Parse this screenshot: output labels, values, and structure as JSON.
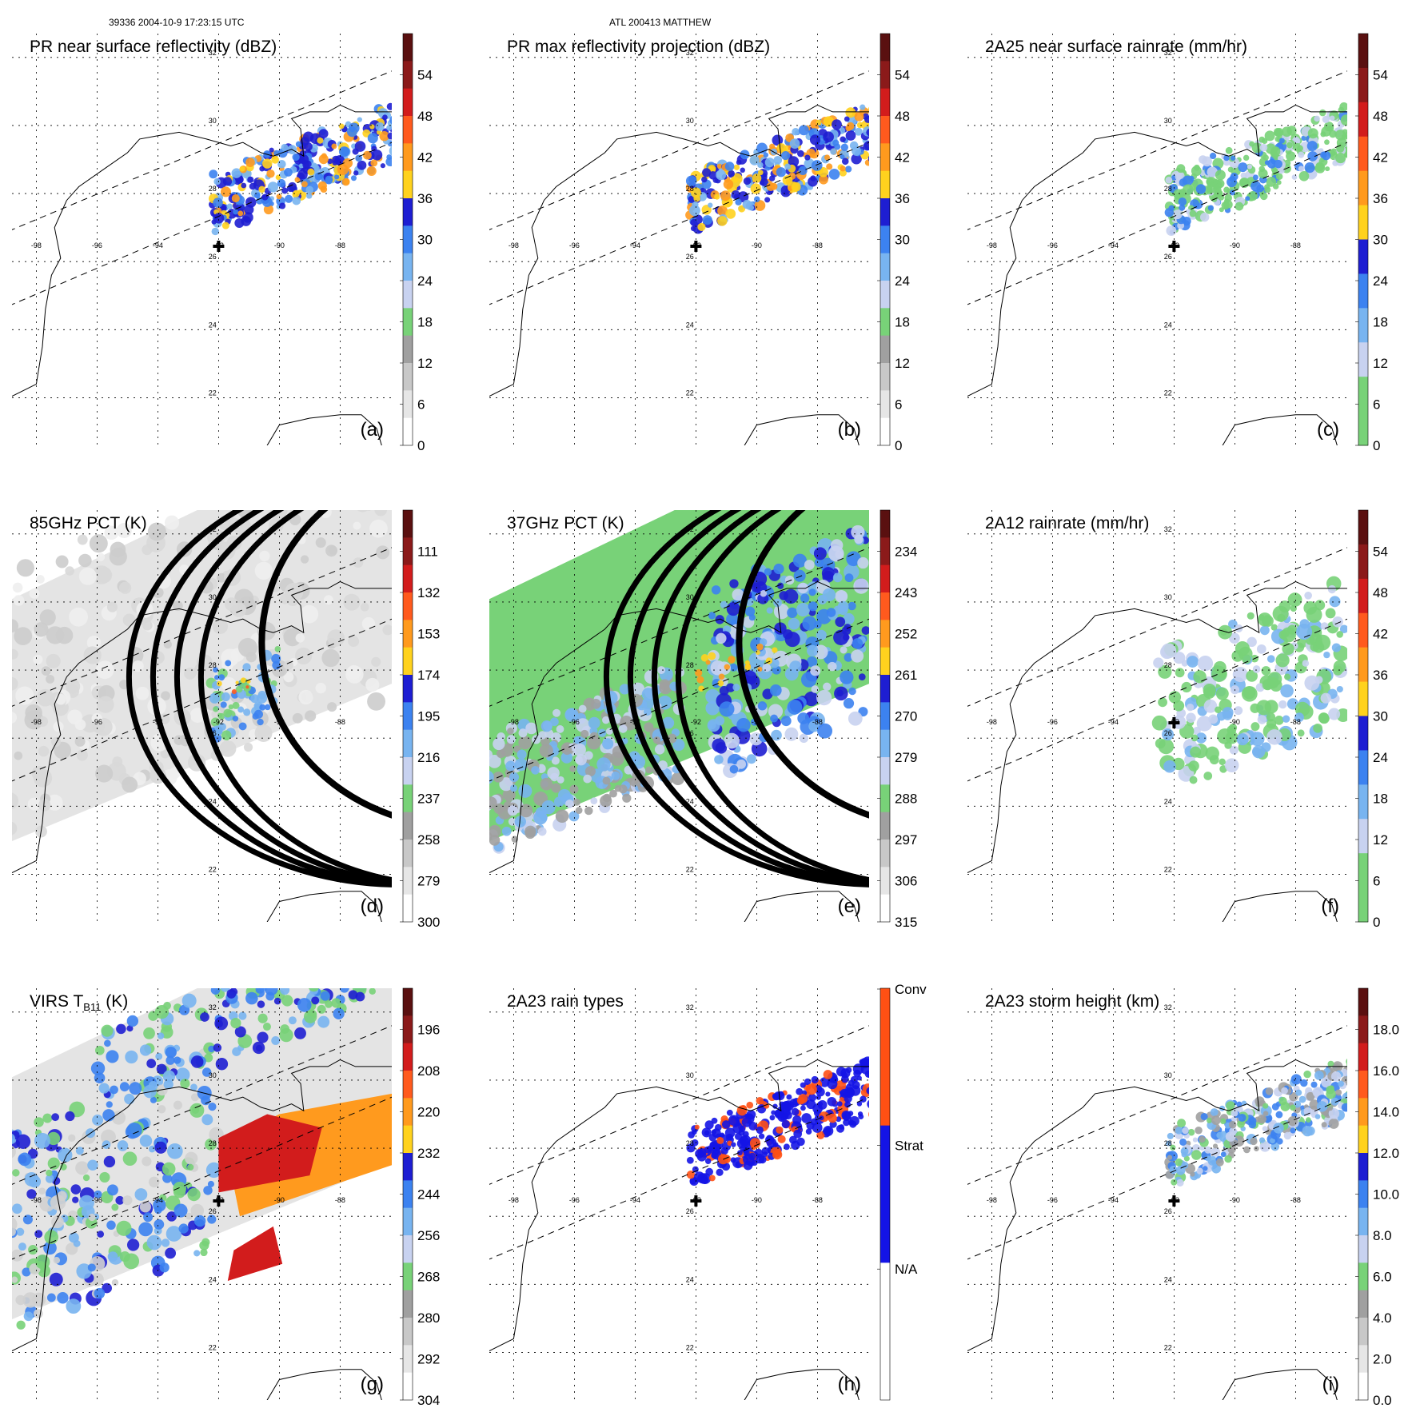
{
  "header": {
    "left": "39336 2004-10-9 17:23:15 UTC",
    "center": "ATL 200413 MATTHEW"
  },
  "map": {
    "lon_ticks": [
      -98,
      -96,
      -94,
      -92,
      -90,
      -88
    ],
    "lat_ticks": [
      22,
      24,
      26,
      28,
      30,
      32
    ],
    "lon_tick_labels": [
      "-98",
      "-96",
      "-94",
      "-92",
      "-90",
      "-88"
    ],
    "lat_tick_labels": [
      "22",
      "24",
      "26",
      "28",
      "30",
      "32"
    ]
  },
  "panels": [
    {
      "id": "a",
      "title": "PR near surface reflectivity (dBZ)",
      "letter": "(a)",
      "cb_labels": [
        "54",
        "48",
        "42",
        "36",
        "30",
        "24",
        "18",
        "12",
        "6",
        "0"
      ],
      "cb_colors": [
        "#5a1010",
        "#8b1a1a",
        "#d21c1c",
        "#ff5a1e",
        "#ff9a1e",
        "#ffd21e",
        "#1e1ed2",
        "#3c82f0",
        "#78b4f0",
        "#c8d2f0",
        "#78d278",
        "#a0a0a0",
        "#c8c8c8",
        "#e6e6e6",
        "#ffffff"
      ],
      "shading": "pr",
      "cross": true
    },
    {
      "id": "b",
      "title": "PR max reflectivity projection (dBZ)",
      "letter": "(b)",
      "cb_labels": [
        "54",
        "48",
        "42",
        "36",
        "30",
        "24",
        "18",
        "12",
        "6",
        "0"
      ],
      "cb_colors": [
        "#5a1010",
        "#8b1a1a",
        "#d21c1c",
        "#ff5a1e",
        "#ff9a1e",
        "#ffd21e",
        "#1e1ed2",
        "#3c82f0",
        "#78b4f0",
        "#c8d2f0",
        "#78d278",
        "#a0a0a0",
        "#c8c8c8",
        "#e6e6e6",
        "#ffffff"
      ],
      "shading": "pr",
      "cross": true
    },
    {
      "id": "c",
      "title": "2A25 near surface rainrate (mm/hr)",
      "letter": "(c)",
      "cb_labels": [
        "54",
        "48",
        "42",
        "36",
        "30",
        "24",
        "18",
        "12",
        "6",
        "0"
      ],
      "cb_colors": [
        "#5a1010",
        "#8b1a1a",
        "#d21c1c",
        "#ff5a1e",
        "#ff9a1e",
        "#ffd21e",
        "#1e1ed2",
        "#3c82f0",
        "#78b4f0",
        "#c8d2f0",
        "#78d278",
        "#78d278"
      ],
      "shading": "pr_rain",
      "cross": true
    },
    {
      "id": "d",
      "title": "85GHz PCT (K)",
      "letter": "(d)",
      "cb_labels": [
        "111",
        "132",
        "153",
        "174",
        "195",
        "216",
        "237",
        "258",
        "279",
        "300"
      ],
      "cb_colors": [
        "#5a1010",
        "#8b1a1a",
        "#d21c1c",
        "#ff5a1e",
        "#ff9a1e",
        "#ffd21e",
        "#1e1ed2",
        "#3c82f0",
        "#78b4f0",
        "#c8d2f0",
        "#78d278",
        "#a0a0a0",
        "#c8c8c8",
        "#e6e6e6",
        "#ffffff"
      ],
      "shading": "tmi85",
      "cross": false
    },
    {
      "id": "e",
      "title": "37GHz PCT (K)",
      "letter": "(e)",
      "cb_labels": [
        "234",
        "243",
        "252",
        "261",
        "270",
        "279",
        "288",
        "297",
        "306",
        "315"
      ],
      "cb_colors": [
        "#5a1010",
        "#8b1a1a",
        "#d21c1c",
        "#ff5a1e",
        "#ff9a1e",
        "#ffd21e",
        "#1e1ed2",
        "#3c82f0",
        "#78b4f0",
        "#c8d2f0",
        "#78d278",
        "#a0a0a0",
        "#c8c8c8",
        "#e6e6e6",
        "#ffffff"
      ],
      "shading": "tmi37",
      "cross": false
    },
    {
      "id": "f",
      "title": "2A12 rainrate (mm/hr)",
      "letter": "(f)",
      "cb_labels": [
        "54",
        "48",
        "42",
        "36",
        "30",
        "24",
        "18",
        "12",
        "6",
        "0"
      ],
      "cb_colors": [
        "#5a1010",
        "#8b1a1a",
        "#d21c1c",
        "#ff5a1e",
        "#ff9a1e",
        "#ffd21e",
        "#1e1ed2",
        "#3c82f0",
        "#78b4f0",
        "#c8d2f0",
        "#78d278",
        "#78d278"
      ],
      "shading": "tmi_rain",
      "cross": true
    },
    {
      "id": "g",
      "title": "VIRS T",
      "title_sub": "B11",
      "title_tail": " (K)",
      "letter": "(g)",
      "cb_labels": [
        "196",
        "208",
        "220",
        "232",
        "244",
        "256",
        "268",
        "280",
        "292",
        "304"
      ],
      "cb_colors": [
        "#5a1010",
        "#8b1a1a",
        "#d21c1c",
        "#ff5a1e",
        "#ff9a1e",
        "#ffd21e",
        "#1e1ed2",
        "#3c82f0",
        "#78b4f0",
        "#c8d2f0",
        "#78d278",
        "#a0a0a0",
        "#c8c8c8",
        "#e6e6e6",
        "#ffffff"
      ],
      "shading": "virs",
      "cross": true
    },
    {
      "id": "h",
      "title": "2A23 rain types",
      "letter": "(h)",
      "cb_labels": [
        "Conv",
        "Strat",
        "N/A"
      ],
      "cb_colors": [
        "#ff5014",
        "#1414e6",
        "#ffffff"
      ],
      "shading": "raintype",
      "cross": true
    },
    {
      "id": "i",
      "title": "2A23 storm height (km)",
      "letter": "(i)",
      "cb_labels": [
        "18.0",
        "16.0",
        "14.0",
        "12.0",
        "10.0",
        "8.0",
        "6.0",
        "4.0",
        "2.0",
        "0.0"
      ],
      "cb_colors": [
        "#5a1010",
        "#8b1a1a",
        "#d21c1c",
        "#ff5a1e",
        "#ff9a1e",
        "#ffd21e",
        "#1e1ed2",
        "#3c82f0",
        "#78b4f0",
        "#c8d2f0",
        "#78d278",
        "#a0a0a0",
        "#c8c8c8",
        "#e6e6e6",
        "#ffffff"
      ],
      "shading": "height",
      "cross": true
    }
  ]
}
